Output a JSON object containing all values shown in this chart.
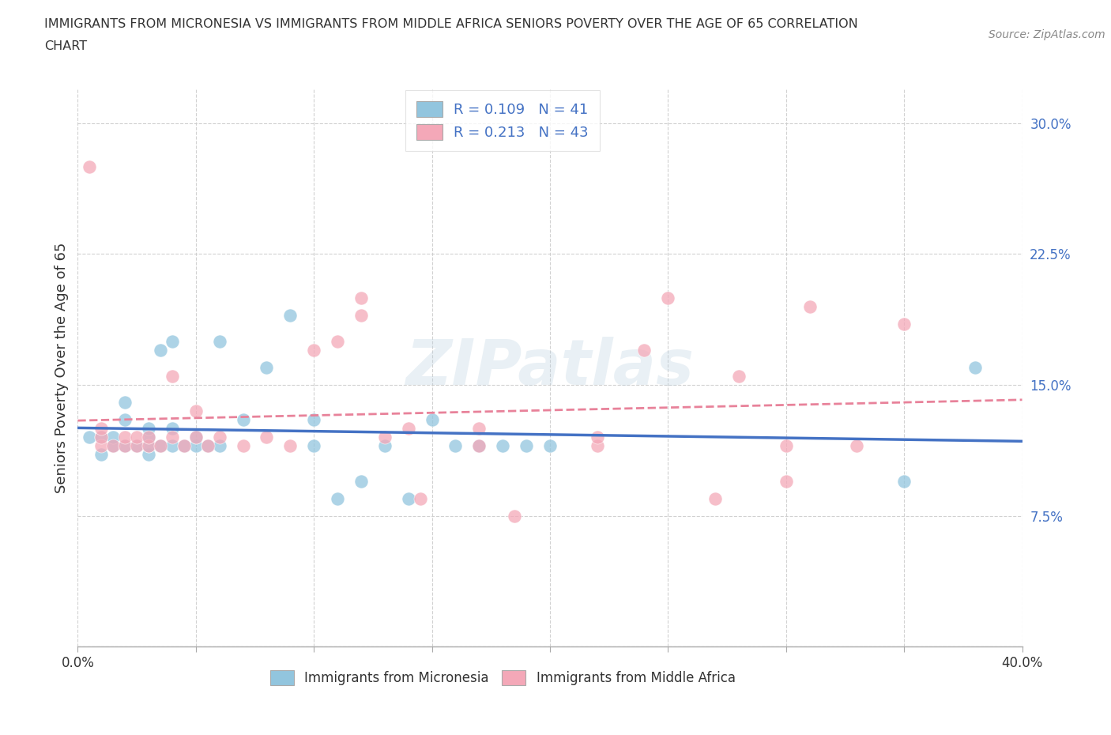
{
  "title_line1": "IMMIGRANTS FROM MICRONESIA VS IMMIGRANTS FROM MIDDLE AFRICA SENIORS POVERTY OVER THE AGE OF 65 CORRELATION",
  "title_line2": "CHART",
  "source": "Source: ZipAtlas.com",
  "ylabel": "Seniors Poverty Over the Age of 65",
  "xlim": [
    0.0,
    0.4
  ],
  "ylim": [
    0.0,
    0.32
  ],
  "xticks": [
    0.0,
    0.05,
    0.1,
    0.15,
    0.2,
    0.25,
    0.3,
    0.35,
    0.4
  ],
  "yticks": [
    0.0,
    0.075,
    0.15,
    0.225,
    0.3
  ],
  "R_micronesia": 0.109,
  "N_micronesia": 41,
  "R_middle_africa": 0.213,
  "N_middle_africa": 43,
  "color_micronesia": "#92C5DE",
  "color_middle_africa": "#F4A8B8",
  "trendline_micronesia_color": "#4472C4",
  "trendline_middle_africa_color": "#E8829A",
  "watermark": "ZIPatlas",
  "scatter_micronesia_x": [
    0.005,
    0.01,
    0.01,
    0.015,
    0.015,
    0.02,
    0.02,
    0.02,
    0.025,
    0.03,
    0.03,
    0.03,
    0.03,
    0.035,
    0.035,
    0.04,
    0.04,
    0.04,
    0.045,
    0.05,
    0.05,
    0.055,
    0.06,
    0.06,
    0.07,
    0.08,
    0.09,
    0.1,
    0.1,
    0.11,
    0.12,
    0.13,
    0.14,
    0.15,
    0.16,
    0.17,
    0.18,
    0.19,
    0.2,
    0.35,
    0.38
  ],
  "scatter_micronesia_y": [
    0.12,
    0.11,
    0.12,
    0.115,
    0.12,
    0.115,
    0.13,
    0.14,
    0.115,
    0.11,
    0.115,
    0.12,
    0.125,
    0.115,
    0.17,
    0.115,
    0.125,
    0.175,
    0.115,
    0.115,
    0.12,
    0.115,
    0.115,
    0.175,
    0.13,
    0.16,
    0.19,
    0.115,
    0.13,
    0.085,
    0.095,
    0.115,
    0.085,
    0.13,
    0.115,
    0.115,
    0.115,
    0.115,
    0.115,
    0.095,
    0.16
  ],
  "scatter_middle_africa_x": [
    0.005,
    0.01,
    0.01,
    0.01,
    0.015,
    0.02,
    0.02,
    0.025,
    0.025,
    0.03,
    0.03,
    0.035,
    0.04,
    0.04,
    0.045,
    0.05,
    0.05,
    0.055,
    0.06,
    0.07,
    0.08,
    0.09,
    0.1,
    0.11,
    0.12,
    0.12,
    0.13,
    0.14,
    0.145,
    0.17,
    0.17,
    0.185,
    0.22,
    0.22,
    0.24,
    0.25,
    0.27,
    0.28,
    0.3,
    0.31,
    0.33,
    0.35,
    0.3
  ],
  "scatter_middle_africa_y": [
    0.275,
    0.115,
    0.12,
    0.125,
    0.115,
    0.115,
    0.12,
    0.115,
    0.12,
    0.115,
    0.12,
    0.115,
    0.12,
    0.155,
    0.115,
    0.12,
    0.135,
    0.115,
    0.12,
    0.115,
    0.12,
    0.115,
    0.17,
    0.175,
    0.19,
    0.2,
    0.12,
    0.125,
    0.085,
    0.115,
    0.125,
    0.075,
    0.115,
    0.12,
    0.17,
    0.2,
    0.085,
    0.155,
    0.095,
    0.195,
    0.115,
    0.185,
    0.115
  ]
}
